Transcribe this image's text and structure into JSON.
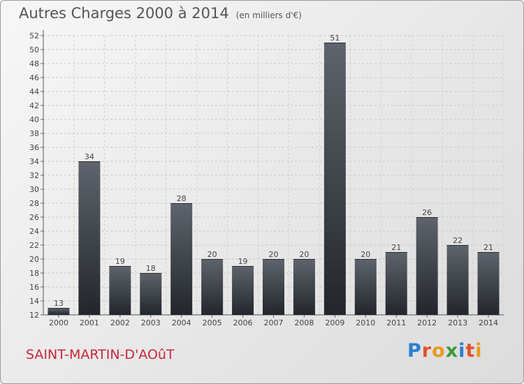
{
  "title": "Autres Charges 2000 à 2014",
  "subtitle": "(en milliers d'€)",
  "commune": "SAINT-MARTIN-D'AOûT",
  "logo": {
    "letters": [
      "P",
      "r",
      "o",
      "x",
      "i",
      "t",
      "i"
    ],
    "colors": [
      "#2a7fd0",
      "#e0532b",
      "#e89a1c",
      "#3a9a3a",
      "#2a7fd0",
      "#e0532b",
      "#e89a1c"
    ]
  },
  "chart_data": {
    "type": "bar",
    "title": "Autres Charges 2000 à 2014",
    "categories": [
      "2000",
      "2001",
      "2002",
      "2003",
      "2004",
      "2005",
      "2006",
      "2007",
      "2008",
      "2009",
      "2010",
      "2011",
      "2012",
      "2013",
      "2014"
    ],
    "values": [
      13,
      34,
      19,
      18,
      28,
      20,
      19,
      20,
      20,
      51,
      20,
      21,
      26,
      22,
      21
    ],
    "ylim": [
      12,
      52
    ],
    "yticks": [
      12,
      14,
      16,
      18,
      20,
      22,
      24,
      26,
      28,
      30,
      32,
      34,
      36,
      38,
      40,
      42,
      44,
      46,
      48,
      50,
      52
    ],
    "grid": true,
    "bar_color": "#4a4f57"
  }
}
